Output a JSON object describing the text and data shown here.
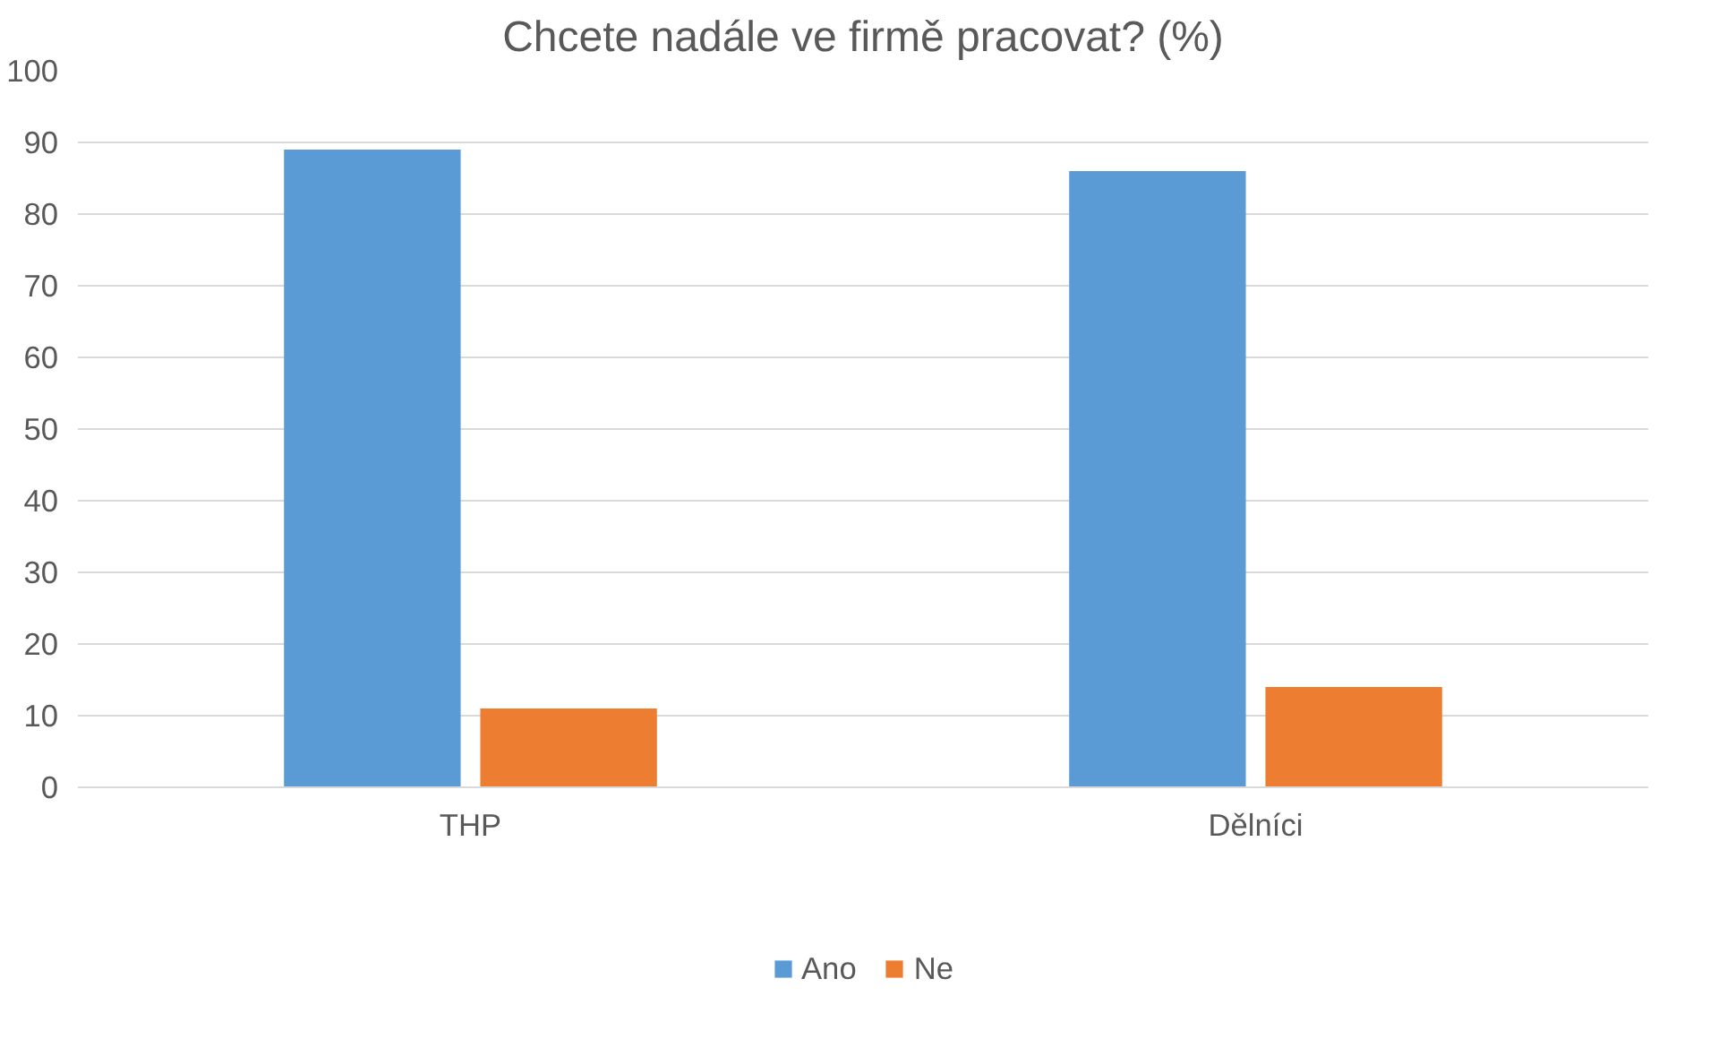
{
  "chart_data": {
    "type": "bar",
    "title": "Chcete nadále ve firmě pracovat? (%)",
    "categories": [
      "THP",
      "Dělníci"
    ],
    "series": [
      {
        "name": "Ano",
        "color": "#5b9bd5",
        "values": [
          89,
          86
        ]
      },
      {
        "name": "Ne",
        "color": "#ed7d31",
        "values": [
          11,
          14
        ]
      }
    ],
    "ylim": [
      0,
      100
    ],
    "yticks": [
      0,
      10,
      20,
      30,
      40,
      50,
      60,
      70,
      80,
      90,
      100
    ],
    "grid": "y",
    "legend": "bottom"
  }
}
